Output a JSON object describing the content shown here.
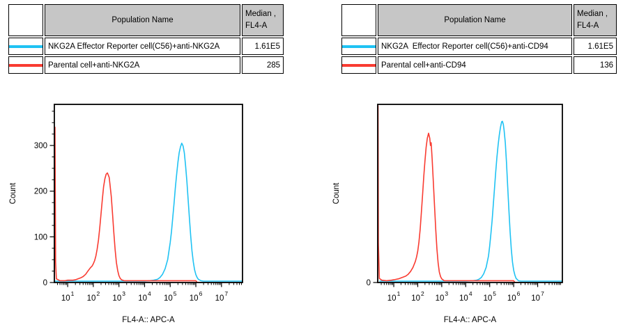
{
  "colors": {
    "cyan": "#1fc2f3",
    "red": "#f93b31",
    "table_header_bg": "#c6c6c6",
    "axis": "#000000",
    "text": "#000000"
  },
  "tables": {
    "left": {
      "header": {
        "population": "Population Name",
        "median_line1": "Median ,",
        "median_line2": "FL4-A"
      },
      "rows": [
        {
          "swatch_color": "#1fc2f3",
          "name": "NKG2A Effector Reporter cell(C56)+anti-NKG2A",
          "median": "1.61E5"
        },
        {
          "swatch_color": "#f93b31",
          "name": "Parental cell+anti-NKG2A",
          "median": "285"
        }
      ]
    },
    "right": {
      "header": {
        "population": "Population Name",
        "median_line1": "Median ,",
        "median_line2": "FL4-A"
      },
      "rows": [
        {
          "swatch_color": "#1fc2f3",
          "name": "NKG2A  Effector Reporter cell(C56)+anti-CD94",
          "median": "1.61E5"
        },
        {
          "swatch_color": "#f93b31",
          "name": "Parental cell+anti-CD94",
          "median": "136"
        }
      ]
    }
  },
  "chart_data": [
    {
      "type": "line",
      "title": "",
      "xlabel": "FL4-A:: APC-A",
      "ylabel": "Count",
      "xscale": "log10",
      "xlim_log10": [
        0.48,
        7.82
      ],
      "ylim": [
        0,
        390
      ],
      "yticks": [
        0,
        100,
        200,
        300
      ],
      "y_minor_step": 25,
      "xtick_decades": [
        1,
        2,
        3,
        4,
        5,
        6,
        7
      ],
      "grid": false,
      "legend_position": "table-above",
      "series": [
        {
          "name": "NKG2A Effector Reporter cell(C56)+anti-NKG2A",
          "color": "#1fc2f3",
          "median": "1.61E5",
          "points": [
            [
              0.5,
              3
            ],
            [
              1.0,
              3
            ],
            [
              2.0,
              3
            ],
            [
              3.0,
              3
            ],
            [
              3.8,
              3
            ],
            [
              4.0,
              3
            ],
            [
              4.2,
              4
            ],
            [
              4.35,
              5
            ],
            [
              4.5,
              7
            ],
            [
              4.6,
              11
            ],
            [
              4.7,
              18
            ],
            [
              4.8,
              30
            ],
            [
              4.9,
              50
            ],
            [
              5.0,
              88
            ],
            [
              5.05,
              112
            ],
            [
              5.1,
              142
            ],
            [
              5.15,
              174
            ],
            [
              5.2,
              207
            ],
            [
              5.25,
              237
            ],
            [
              5.3,
              263
            ],
            [
              5.35,
              284
            ],
            [
              5.4,
              297
            ],
            [
              5.45,
              305
            ],
            [
              5.5,
              299
            ],
            [
              5.55,
              284
            ],
            [
              5.6,
              256
            ],
            [
              5.65,
              221
            ],
            [
              5.7,
              181
            ],
            [
              5.75,
              139
            ],
            [
              5.8,
              101
            ],
            [
              5.85,
              69
            ],
            [
              5.9,
              45
            ],
            [
              5.95,
              28
            ],
            [
              6.0,
              17
            ],
            [
              6.05,
              11
            ],
            [
              6.1,
              7
            ],
            [
              6.2,
              4
            ],
            [
              6.3,
              3
            ],
            [
              7.0,
              3
            ],
            [
              7.82,
              3
            ]
          ]
        },
        {
          "name": "Parental cell+anti-NKG2A",
          "color": "#f93b31",
          "median": "285",
          "points": [
            [
              0.48,
              0
            ],
            [
              0.505,
              340
            ],
            [
              0.53,
              45
            ],
            [
              0.56,
              8
            ],
            [
              0.7,
              4
            ],
            [
              0.9,
              4
            ],
            [
              1.0,
              5
            ],
            [
              1.2,
              5
            ],
            [
              1.3,
              6
            ],
            [
              1.4,
              8
            ],
            [
              1.5,
              10
            ],
            [
              1.6,
              13
            ],
            [
              1.7,
              18
            ],
            [
              1.8,
              26
            ],
            [
              1.9,
              33
            ],
            [
              1.95,
              36
            ],
            [
              2.0,
              41
            ],
            [
              2.05,
              48
            ],
            [
              2.1,
              58
            ],
            [
              2.15,
              73
            ],
            [
              2.2,
              93
            ],
            [
              2.25,
              119
            ],
            [
              2.3,
              149
            ],
            [
              2.35,
              181
            ],
            [
              2.4,
              209
            ],
            [
              2.45,
              227
            ],
            [
              2.5,
              237
            ],
            [
              2.55,
              240
            ],
            [
              2.58,
              236
            ],
            [
              2.62,
              230
            ],
            [
              2.65,
              215
            ],
            [
              2.7,
              188
            ],
            [
              2.75,
              150
            ],
            [
              2.8,
              110
            ],
            [
              2.85,
              72
            ],
            [
              2.9,
              44
            ],
            [
              2.95,
              26
            ],
            [
              3.0,
              15
            ],
            [
              3.05,
              9
            ],
            [
              3.1,
              6
            ],
            [
              3.2,
              4
            ],
            [
              3.35,
              4
            ],
            [
              4.0,
              4
            ],
            [
              5.0,
              4
            ],
            [
              5.5,
              4
            ],
            [
              6.0,
              4
            ],
            [
              6.05,
              0
            ],
            [
              7.82,
              0
            ]
          ]
        }
      ]
    },
    {
      "type": "line",
      "title": "",
      "xlabel": "FL4-A:: APC-A",
      "ylabel": "Count",
      "xscale": "log10",
      "xlim_log10": [
        0.33,
        8.03
      ],
      "ylim": [
        0,
        390
      ],
      "yticks": [
        0
      ],
      "y_minor_step": 0,
      "xtick_decades": [
        1,
        2,
        3,
        4,
        5,
        6,
        7
      ],
      "grid": false,
      "legend_position": "table-above",
      "series": [
        {
          "name": "NKG2A  Effector Reporter cell(C56)+anti-CD94",
          "color": "#1fc2f3",
          "median": "1.61E5",
          "points": [
            [
              0.4,
              3
            ],
            [
              1.0,
              3
            ],
            [
              2.0,
              3
            ],
            [
              3.0,
              3
            ],
            [
              4.0,
              3
            ],
            [
              4.3,
              4
            ],
            [
              4.45,
              5
            ],
            [
              4.55,
              7
            ],
            [
              4.65,
              11
            ],
            [
              4.75,
              19
            ],
            [
              4.85,
              33
            ],
            [
              4.95,
              58
            ],
            [
              5.0,
              80
            ],
            [
              5.05,
              106
            ],
            [
              5.1,
              136
            ],
            [
              5.15,
              171
            ],
            [
              5.2,
              206
            ],
            [
              5.25,
              241
            ],
            [
              5.3,
              273
            ],
            [
              5.35,
              301
            ],
            [
              5.4,
              323
            ],
            [
              5.45,
              340
            ],
            [
              5.5,
              352
            ],
            [
              5.53,
              353
            ],
            [
              5.57,
              346
            ],
            [
              5.6,
              333
            ],
            [
              5.65,
              306
            ],
            [
              5.7,
              263
            ],
            [
              5.75,
              211
            ],
            [
              5.8,
              158
            ],
            [
              5.85,
              111
            ],
            [
              5.9,
              73
            ],
            [
              5.95,
              45
            ],
            [
              6.0,
              27
            ],
            [
              6.05,
              16
            ],
            [
              6.1,
              9
            ],
            [
              6.2,
              4
            ],
            [
              6.3,
              3
            ],
            [
              7.0,
              3
            ],
            [
              8.03,
              3
            ]
          ]
        },
        {
          "name": "Parental cell+anti-CD94",
          "color": "#f93b31",
          "median": "136",
          "points": [
            [
              0.33,
              0
            ],
            [
              0.345,
              387
            ],
            [
              0.36,
              85
            ],
            [
              0.4,
              9
            ],
            [
              0.5,
              5
            ],
            [
              0.7,
              4
            ],
            [
              0.9,
              5
            ],
            [
              1.0,
              6
            ],
            [
              1.1,
              7
            ],
            [
              1.2,
              8
            ],
            [
              1.3,
              10
            ],
            [
              1.4,
              12
            ],
            [
              1.5,
              14
            ],
            [
              1.6,
              18
            ],
            [
              1.7,
              24
            ],
            [
              1.8,
              33
            ],
            [
              1.9,
              46
            ],
            [
              1.95,
              56
            ],
            [
              2.0,
              69
            ],
            [
              2.05,
              89
            ],
            [
              2.1,
              116
            ],
            [
              2.15,
              152
            ],
            [
              2.2,
              192
            ],
            [
              2.25,
              232
            ],
            [
              2.3,
              266
            ],
            [
              2.35,
              296
            ],
            [
              2.4,
              316
            ],
            [
              2.45,
              327
            ],
            [
              2.5,
              316
            ],
            [
              2.53,
              300
            ],
            [
              2.56,
              306
            ],
            [
              2.6,
              271
            ],
            [
              2.65,
              221
            ],
            [
              2.7,
              166
            ],
            [
              2.75,
              116
            ],
            [
              2.8,
              73
            ],
            [
              2.85,
              43
            ],
            [
              2.9,
              23
            ],
            [
              2.95,
              13
            ],
            [
              3.0,
              8
            ],
            [
              3.1,
              4
            ],
            [
              3.2,
              4
            ],
            [
              4.0,
              4
            ],
            [
              5.0,
              4
            ],
            [
              5.5,
              4
            ],
            [
              6.0,
              4
            ],
            [
              6.05,
              0
            ],
            [
              8.03,
              0
            ]
          ]
        }
      ]
    }
  ]
}
